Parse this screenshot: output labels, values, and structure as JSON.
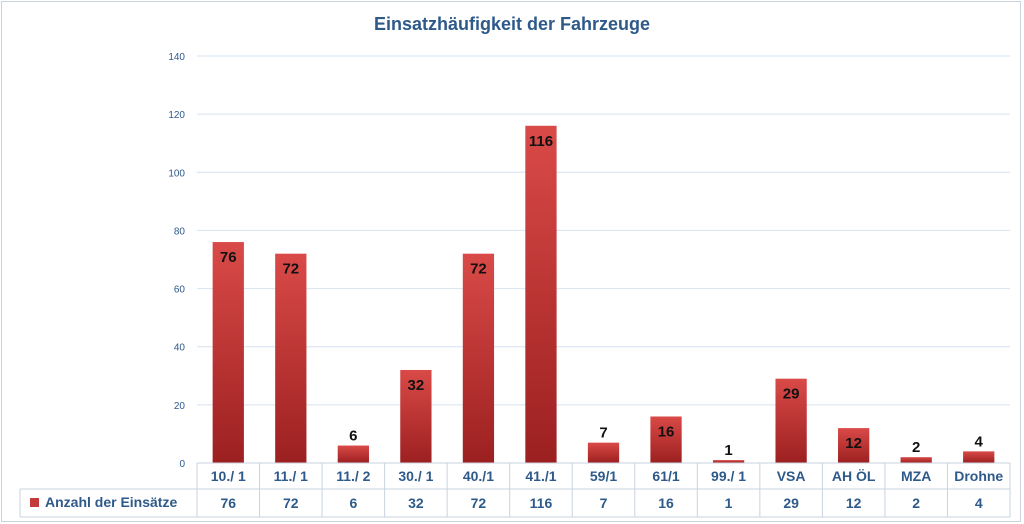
{
  "chart_data": {
    "type": "bar",
    "title": "Einsatzhäufigkeit der Fahrzeuge",
    "categories": [
      "10./ 1",
      "11./ 1",
      "11./ 2",
      "30./ 1",
      "40./1",
      "41./1",
      "59/1",
      "61/1",
      "99./ 1",
      "VSA",
      "AH ÖL",
      "MZA",
      "Drohne"
    ],
    "series": [
      {
        "name": "Anzahl der Einsätze",
        "values": [
          76,
          72,
          6,
          32,
          72,
          116,
          7,
          16,
          1,
          29,
          12,
          2,
          4
        ],
        "color": "#c43a3a"
      }
    ],
    "ylim": [
      0,
      140
    ],
    "yticks": [
      0,
      20,
      40,
      60,
      80,
      100,
      120,
      140
    ],
    "grid": true,
    "legend": "bottom-left, within data table"
  },
  "colors": {
    "bar_top": "#d94a48",
    "bar_bottom": "#9c2020",
    "grid": "#d6e2ef",
    "axis_text": "#2e5a8a",
    "table_border": "#c9d3e0"
  }
}
